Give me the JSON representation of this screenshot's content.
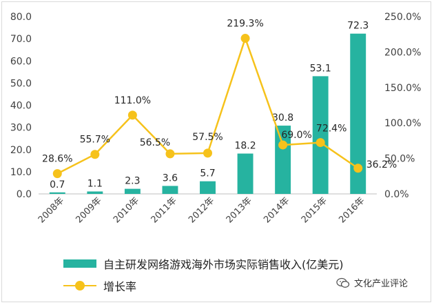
{
  "chart_data": {
    "type": "bar",
    "categories": [
      "2008年",
      "2009年",
      "2010年",
      "2011年",
      "2012年",
      "2013年",
      "2014年",
      "2015年",
      "2016年"
    ],
    "series": [
      {
        "name": "自主研发网络游戏海外市场实际销售收入(亿美元)",
        "type": "bar",
        "axis": "left",
        "values": [
          0.7,
          1.1,
          2.3,
          3.6,
          5.7,
          18.2,
          30.8,
          53.1,
          72.3
        ],
        "labels": [
          "0.7",
          "1.1",
          "2.3",
          "3.6",
          "5.7",
          "18.2",
          "30.8",
          "53.1",
          "72.3"
        ],
        "color": "#26b3a0"
      },
      {
        "name": "增长率",
        "type": "line",
        "axis": "right",
        "values": [
          28.6,
          55.7,
          111.0,
          56.5,
          57.5,
          219.3,
          69.0,
          72.4,
          36.2
        ],
        "labels": [
          "28.6%",
          "55.7%",
          "111.0%",
          "56.5%",
          "57.5%",
          "219.3%",
          "69.0%",
          "72.4%",
          "36.2%"
        ],
        "color": "#f6c21b"
      }
    ],
    "y_left": {
      "ylim": [
        0,
        80
      ],
      "ticks": [
        "0.0",
        "10.0",
        "20.0",
        "30.0",
        "40.0",
        "50.0",
        "60.0",
        "70.0",
        "80.0"
      ]
    },
    "y_right": {
      "ylim": [
        0,
        250
      ],
      "ticks": [
        "0.0%",
        "50.0%",
        "100.0%",
        "150.0%",
        "200.0%",
        "250.0%"
      ]
    },
    "grid": false,
    "legend": "bottom-left"
  },
  "legend": {
    "bar_label": "自主研发网络游戏海外市场实际销售收入(亿美元)",
    "line_label": "增长率"
  },
  "watermark": {
    "text": "文化产业评论"
  }
}
